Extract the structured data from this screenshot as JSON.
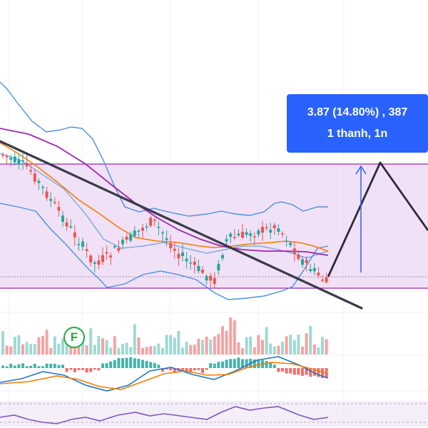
{
  "measure_tooltip": {
    "line1": "3.87 (14.80%) , 387",
    "line2": "1 thanh, 1n"
  },
  "badge": {
    "label": "F"
  },
  "colors": {
    "up": "#26a69a",
    "down": "#ef5350",
    "range_box": "#e4c8ee",
    "range_border": "#9c27b0",
    "bollinger": "#4a90e2",
    "ma_fast": "#f57c00",
    "ma_slow": "#9c27b0",
    "trendline": "#3a3a48",
    "projection": "#2b2b36",
    "accent": "#2962ff",
    "rsi": "#7e57c2"
  },
  "icons": {
    "projection_arrow": "arrow-up-icon",
    "flag": "financial-flag-icon"
  }
}
